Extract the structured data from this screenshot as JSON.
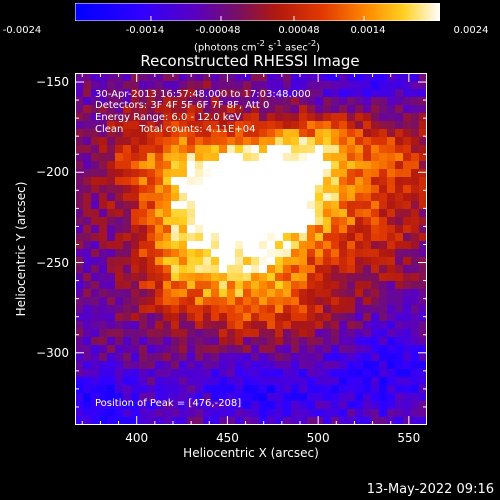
{
  "colorbar": {
    "ticks": [
      "-0.0024",
      "-0.0014",
      "-0.00048",
      "0.00048",
      "0.0014",
      "0.0024"
    ],
    "unit_main": "(photons cm",
    "unit_exp1": "-2",
    "unit_mid": " s",
    "unit_exp2": "-1",
    "unit_tail": " asec",
    "unit_exp3": "-2",
    "unit_close": ")"
  },
  "annotations": {
    "time": "30-Apr-2013 16:57:48.000 to 17:03:48.000",
    "detectors": "Detectors: 3F 4F 5F 6F 7F 8F, Att 0",
    "energy": "Energy Range: 6.0 - 12.0 keV",
    "clean": "Clean     Total counts: 4.11E+04",
    "peak": "Position of Peak = [476,-208]"
  },
  "timestamp": "13-May-2022 09:16",
  "chart_data": {
    "type": "heatmap",
    "title": "Reconstructed RHESSI Image",
    "xlabel": "Heliocentric X (arcsec)",
    "ylabel": "Heliocentric Y (arcsec)",
    "xlim": [
      366,
      560
    ],
    "ylim": [
      -340,
      -145
    ],
    "xticks": [
      400,
      450,
      500,
      550
    ],
    "yticks": [
      -150,
      -200,
      -250,
      -300
    ],
    "color_range": [
      -0.0024,
      0.0024
    ],
    "colorbar_position": "top",
    "peak": [
      476,
      -208
    ],
    "sources": [
      {
        "x": 476,
        "y": -208,
        "sx": 24,
        "sy": 20,
        "amp": 1.0
      },
      {
        "x": 455,
        "y": -230,
        "sx": 30,
        "sy": 26,
        "amp": 0.75
      },
      {
        "x": 430,
        "y": -200,
        "sx": 22,
        "sy": 24,
        "amp": 0.55
      },
      {
        "x": 505,
        "y": -185,
        "sx": 20,
        "sy": 14,
        "amp": 0.45
      },
      {
        "x": 470,
        "y": -270,
        "sx": 28,
        "sy": 18,
        "amp": 0.45
      },
      {
        "x": 420,
        "y": -255,
        "sx": 18,
        "sy": 18,
        "amp": 0.35
      },
      {
        "x": 530,
        "y": -225,
        "sx": 24,
        "sy": 26,
        "amp": 0.35
      },
      {
        "x": 545,
        "y": -190,
        "sx": 14,
        "sy": 14,
        "amp": 0.3
      },
      {
        "x": 395,
        "y": -190,
        "sx": 16,
        "sy": 18,
        "amp": 0.25
      },
      {
        "x": 380,
        "y": -330,
        "sx": 18,
        "sy": 14,
        "amp": -0.4
      },
      {
        "x": 470,
        "y": -320,
        "sx": 30,
        "sy": 14,
        "amp": -0.35
      },
      {
        "x": 540,
        "y": -310,
        "sx": 24,
        "sy": 20,
        "amp": -0.3
      },
      {
        "x": 520,
        "y": -150,
        "sx": 26,
        "sy": 12,
        "amp": -0.25
      }
    ]
  }
}
